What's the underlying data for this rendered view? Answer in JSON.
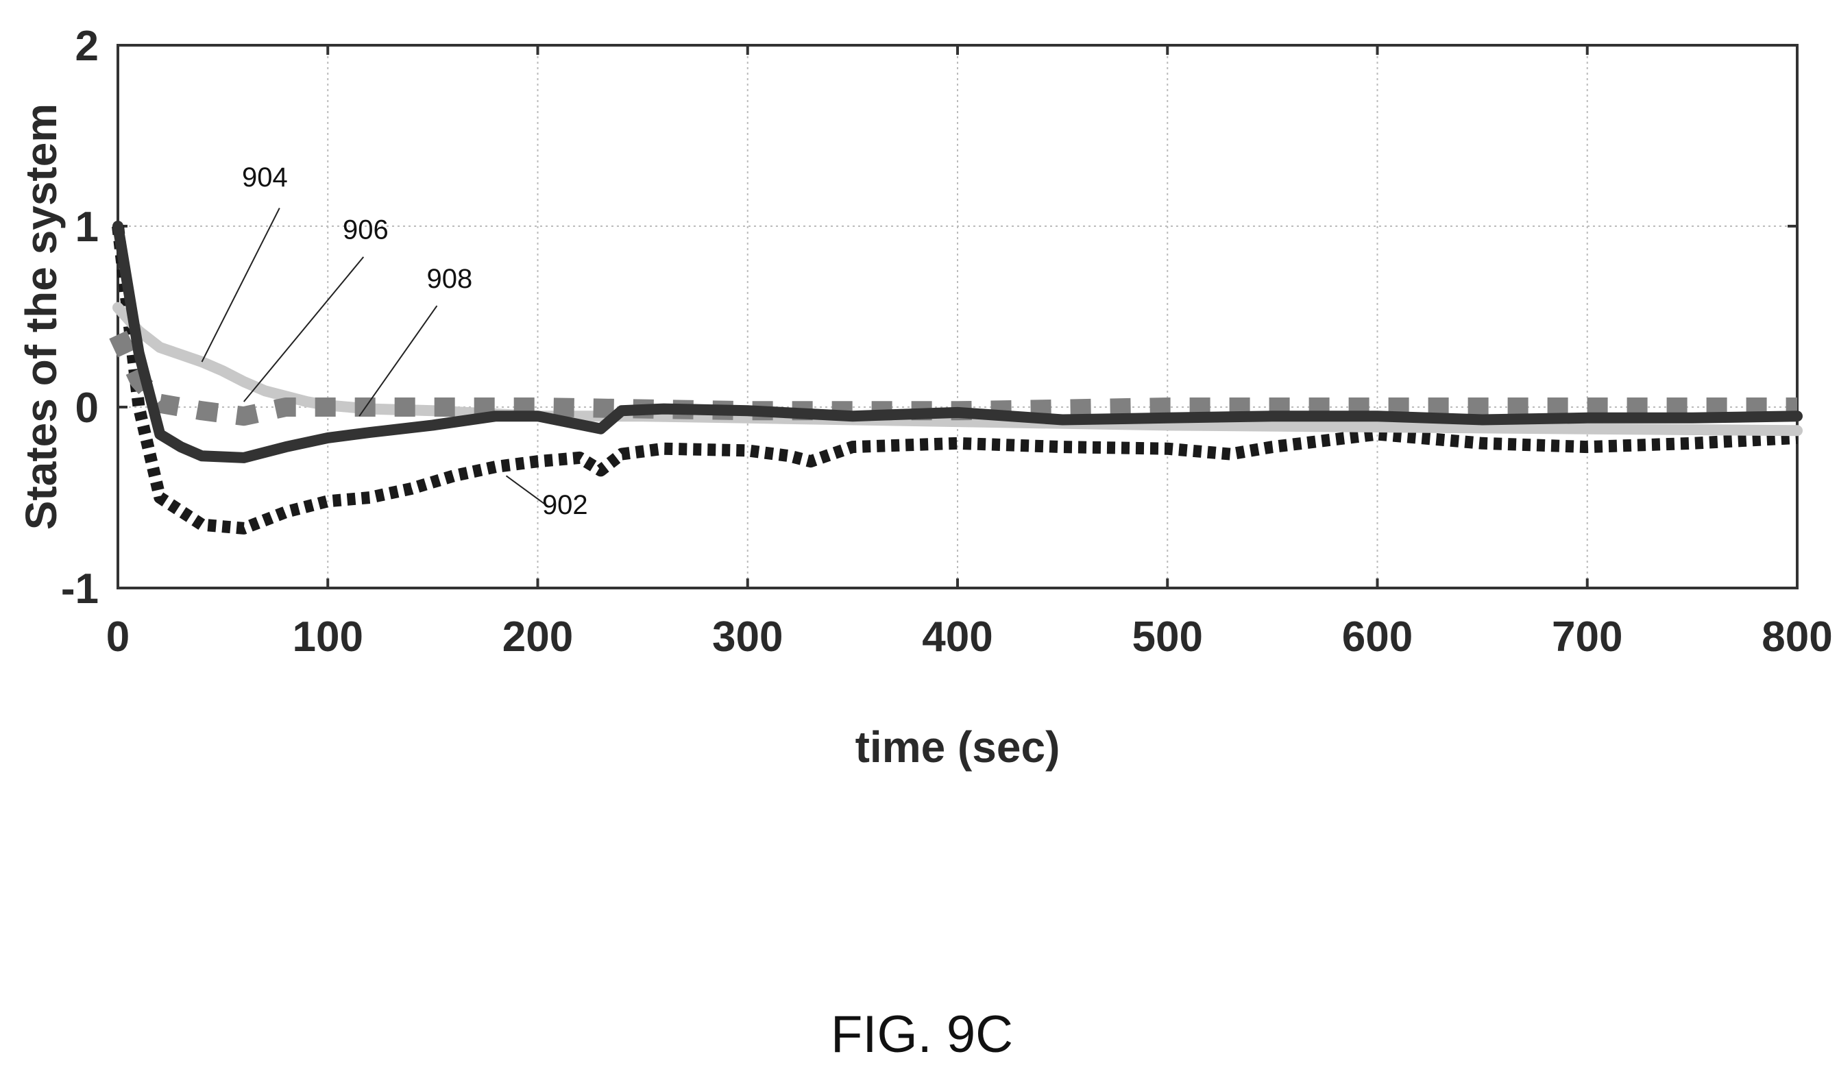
{
  "figure": {
    "caption": "FIG. 9C"
  },
  "chart_data": {
    "type": "line",
    "xlabel": "time (sec)",
    "ylabel": "States of the system",
    "xlim": [
      0,
      800
    ],
    "ylim": [
      -1,
      2
    ],
    "xticks": [
      "0",
      "100",
      "200",
      "300",
      "400",
      "500",
      "600",
      "700",
      "800"
    ],
    "yticks": [
      "-1",
      "0",
      "1",
      "2"
    ],
    "grid": true,
    "colors": {
      "axis": "#333333",
      "grid": "#bbbbbb"
    },
    "series": [
      {
        "name": "902",
        "color": "#1a1a1a",
        "style": "dotted",
        "points": [
          [
            0,
            1
          ],
          [
            10,
            0
          ],
          [
            20,
            -0.5
          ],
          [
            40,
            -0.65
          ],
          [
            60,
            -0.67
          ],
          [
            80,
            -0.58
          ],
          [
            100,
            -0.52
          ],
          [
            120,
            -0.5
          ],
          [
            140,
            -0.45
          ],
          [
            160,
            -0.38
          ],
          [
            180,
            -0.33
          ],
          [
            200,
            -0.3
          ],
          [
            220,
            -0.28
          ],
          [
            230,
            -0.35
          ],
          [
            240,
            -0.26
          ],
          [
            260,
            -0.23
          ],
          [
            300,
            -0.24
          ],
          [
            320,
            -0.27
          ],
          [
            330,
            -0.3
          ],
          [
            350,
            -0.22
          ],
          [
            400,
            -0.2
          ],
          [
            450,
            -0.22
          ],
          [
            500,
            -0.23
          ],
          [
            530,
            -0.26
          ],
          [
            550,
            -0.22
          ],
          [
            600,
            -0.15
          ],
          [
            650,
            -0.2
          ],
          [
            700,
            -0.22
          ],
          [
            750,
            -0.2
          ],
          [
            800,
            -0.17
          ]
        ]
      },
      {
        "name": "904",
        "color": "#c8c8c8",
        "style": "solid",
        "points": [
          [
            0,
            0.55
          ],
          [
            10,
            0.42
          ],
          [
            20,
            0.33
          ],
          [
            40,
            0.25
          ],
          [
            50,
            0.2
          ],
          [
            60,
            0.14
          ],
          [
            70,
            0.09
          ],
          [
            90,
            0.03
          ],
          [
            100,
            0.01
          ],
          [
            120,
            -0.01
          ],
          [
            150,
            -0.02
          ],
          [
            200,
            -0.05
          ],
          [
            250,
            -0.05
          ],
          [
            300,
            -0.06
          ],
          [
            400,
            -0.08
          ],
          [
            500,
            -0.1
          ],
          [
            600,
            -0.11
          ],
          [
            700,
            -0.12
          ],
          [
            800,
            -0.13
          ]
        ]
      },
      {
        "name": "906",
        "color": "#808080",
        "style": "dashed",
        "points": [
          [
            0,
            0.4
          ],
          [
            10,
            0.15
          ],
          [
            20,
            0.02
          ],
          [
            40,
            -0.02
          ],
          [
            60,
            -0.05
          ],
          [
            80,
            0.0
          ],
          [
            100,
            0.0
          ],
          [
            150,
            0.0
          ],
          [
            200,
            0.0
          ],
          [
            300,
            -0.02
          ],
          [
            400,
            -0.02
          ],
          [
            500,
            0.0
          ],
          [
            600,
            0.0
          ],
          [
            700,
            0.0
          ],
          [
            800,
            0.0
          ]
        ]
      },
      {
        "name": "908",
        "color": "#333333",
        "style": "solid",
        "points": [
          [
            0,
            1
          ],
          [
            10,
            0.3
          ],
          [
            20,
            -0.15
          ],
          [
            30,
            -0.22
          ],
          [
            40,
            -0.27
          ],
          [
            60,
            -0.28
          ],
          [
            80,
            -0.22
          ],
          [
            100,
            -0.17
          ],
          [
            120,
            -0.14
          ],
          [
            150,
            -0.1
          ],
          [
            180,
            -0.05
          ],
          [
            200,
            -0.05
          ],
          [
            230,
            -0.12
          ],
          [
            240,
            -0.02
          ],
          [
            260,
            -0.01
          ],
          [
            300,
            -0.02
          ],
          [
            350,
            -0.05
          ],
          [
            400,
            -0.03
          ],
          [
            450,
            -0.07
          ],
          [
            500,
            -0.06
          ],
          [
            550,
            -0.05
          ],
          [
            600,
            -0.05
          ],
          [
            650,
            -0.07
          ],
          [
            700,
            -0.06
          ],
          [
            750,
            -0.06
          ],
          [
            800,
            -0.05
          ]
        ]
      }
    ],
    "callouts": [
      {
        "label": "904",
        "text_at": [
          70,
          1.22
        ],
        "line_from": [
          77,
          1.1
        ],
        "line_to": [
          40,
          0.25
        ]
      },
      {
        "label": "906",
        "text_at": [
          118,
          0.93
        ],
        "line_from": [
          117,
          0.83
        ],
        "line_to": [
          60,
          0.03
        ]
      },
      {
        "label": "908",
        "text_at": [
          158,
          0.66
        ],
        "line_from": [
          152,
          0.56
        ],
        "line_to": [
          115,
          -0.05
        ]
      },
      {
        "label": "902",
        "text_at": [
          213,
          -0.59
        ],
        "line_from": [
          205,
          -0.55
        ],
        "line_to": [
          185,
          -0.38
        ]
      }
    ]
  }
}
